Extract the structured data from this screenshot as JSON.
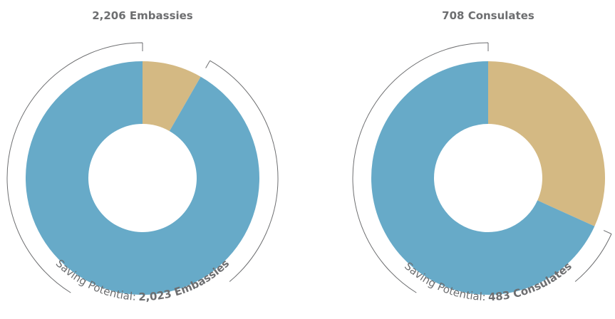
{
  "chart_data": [
    {
      "type": "donut",
      "title": "2,206 Embassies",
      "annotation": "Saving Potential:",
      "categories": [
        null,
        null
      ],
      "values": [
        183,
        2023
      ],
      "value_labels": [
        null,
        "2,023 Embassies"
      ],
      "colors": [
        "#d4b983",
        "#67aac8"
      ]
    },
    {
      "type": "donut",
      "title": "708 Consulates",
      "annotation": "Saving Potential:",
      "categories": [
        null,
        null
      ],
      "values": [
        225,
        483
      ],
      "value_labels": [
        null,
        "483 Consulates"
      ],
      "colors": [
        "#d4b983",
        "#67aac8"
      ]
    }
  ]
}
